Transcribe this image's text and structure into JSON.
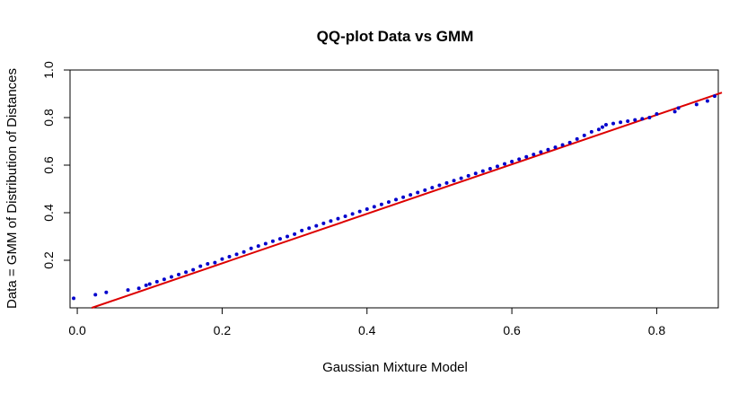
{
  "chart_data": {
    "type": "scatter",
    "title": "QQ-plot Data vs GMM",
    "xlabel": "Gaussian Mixture Model",
    "ylabel": "Data = GMM of Distribution of Distances",
    "xlim": [
      -0.01,
      0.885
    ],
    "ylim": [
      0.0,
      1.0
    ],
    "x_ticks": [
      "0.0",
      "0.2",
      "0.4",
      "0.6",
      "0.8"
    ],
    "y_ticks": [
      "0.2",
      "0.4",
      "0.6",
      "0.8",
      "1.0"
    ],
    "grid": false,
    "legend": "none",
    "point_color": "#0000cc",
    "line_color": "#dd0000",
    "reference_line": {
      "x": [
        0.02,
        0.89
      ],
      "y": [
        0.0,
        0.905
      ]
    },
    "series": [
      {
        "x": [
          -0.005,
          0.025,
          0.04,
          0.07,
          0.085,
          0.095,
          0.1,
          0.11,
          0.12,
          0.13,
          0.14,
          0.15,
          0.16,
          0.17,
          0.18,
          0.19,
          0.2,
          0.21,
          0.22,
          0.23,
          0.24,
          0.25,
          0.26,
          0.27,
          0.28,
          0.29,
          0.3,
          0.31,
          0.32,
          0.33,
          0.34,
          0.35,
          0.36,
          0.37,
          0.38,
          0.39,
          0.4,
          0.41,
          0.42,
          0.43,
          0.44,
          0.45,
          0.46,
          0.47,
          0.48,
          0.49,
          0.5,
          0.51,
          0.52,
          0.53,
          0.54,
          0.55,
          0.56,
          0.57,
          0.58,
          0.59,
          0.6,
          0.61,
          0.62,
          0.63,
          0.64,
          0.65,
          0.66,
          0.67,
          0.68,
          0.69,
          0.7,
          0.71,
          0.72,
          0.725,
          0.73,
          0.74,
          0.75,
          0.76,
          0.77,
          0.78,
          0.79,
          0.8,
          0.825,
          0.83,
          0.855,
          0.87,
          0.88
        ],
        "y": [
          0.04,
          0.055,
          0.065,
          0.075,
          0.082,
          0.095,
          0.1,
          0.11,
          0.12,
          0.13,
          0.14,
          0.15,
          0.16,
          0.175,
          0.185,
          0.19,
          0.205,
          0.215,
          0.225,
          0.235,
          0.25,
          0.26,
          0.27,
          0.28,
          0.29,
          0.3,
          0.31,
          0.325,
          0.335,
          0.345,
          0.355,
          0.365,
          0.375,
          0.385,
          0.395,
          0.405,
          0.415,
          0.425,
          0.435,
          0.445,
          0.455,
          0.465,
          0.475,
          0.485,
          0.495,
          0.505,
          0.515,
          0.525,
          0.535,
          0.545,
          0.555,
          0.565,
          0.575,
          0.585,
          0.595,
          0.605,
          0.615,
          0.625,
          0.635,
          0.645,
          0.655,
          0.665,
          0.675,
          0.685,
          0.695,
          0.71,
          0.725,
          0.74,
          0.75,
          0.76,
          0.77,
          0.775,
          0.78,
          0.785,
          0.79,
          0.795,
          0.8,
          0.815,
          0.825,
          0.84,
          0.855,
          0.87,
          0.89
        ]
      }
    ]
  }
}
